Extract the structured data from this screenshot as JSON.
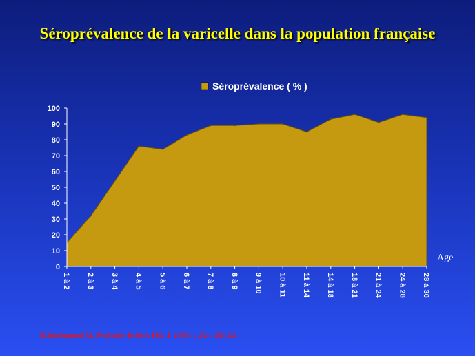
{
  "slide": {
    "title": "Séroprévalence de la varicelle dans la population française",
    "citation": "Khoshnood B, Pediatr Infect Dis J 2006 ; 25 : 41-44",
    "age_label": "Age"
  },
  "colors": {
    "area_fill": "#c59a10",
    "area_stroke": "#6b5200",
    "title_color": "#ffff00",
    "citation_color": "#d7192b"
  },
  "chart_data": {
    "type": "area",
    "legend": "top-center",
    "grid": false,
    "categories": [
      "1 à 2",
      "2 à 3",
      "3 à 4",
      "4 à 5",
      "5 à 6",
      "6 à 7",
      "7 à 8",
      "8 à 9",
      "9 à 10",
      "10 à 11",
      "11 à 14",
      "14 à 18",
      "18 à 21",
      "21 à 24",
      "24 à 28",
      "28 à 30"
    ],
    "series": [
      {
        "name": "Séroprévalence ( % )",
        "values": [
          15,
          32,
          54,
          76,
          74,
          83,
          89,
          89,
          90,
          90,
          85,
          93,
          96,
          91,
          96,
          94
        ]
      }
    ],
    "ylim": [
      0,
      100
    ],
    "yticks": [
      0,
      10,
      20,
      30,
      40,
      50,
      60,
      70,
      80,
      90,
      100
    ]
  }
}
